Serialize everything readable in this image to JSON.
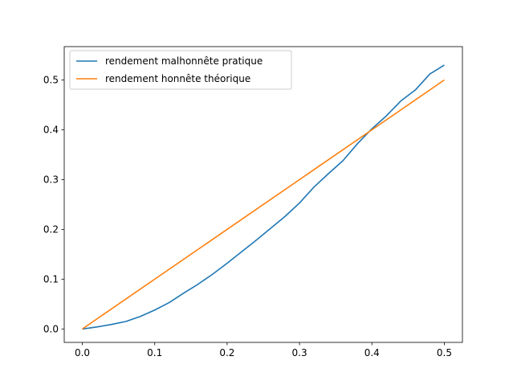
{
  "chart_data": {
    "type": "line",
    "title": "",
    "xlabel": "",
    "ylabel": "",
    "xlim": [
      -0.025,
      0.525
    ],
    "ylim": [
      -0.027,
      0.567
    ],
    "x_ticks": [
      0.0,
      0.1,
      0.2,
      0.3,
      0.4,
      0.5
    ],
    "x_tick_labels": [
      "0.0",
      "0.1",
      "0.2",
      "0.3",
      "0.4",
      "0.5"
    ],
    "y_ticks": [
      0.0,
      0.1,
      0.2,
      0.3,
      0.4,
      0.5
    ],
    "y_tick_labels": [
      "0.0",
      "0.1",
      "0.2",
      "0.3",
      "0.4",
      "0.5"
    ],
    "grid": false,
    "legend_position": "top-left",
    "series": [
      {
        "name": "rendement malhonnête pratique",
        "color": "#1f77b4",
        "x": [
          0.0,
          0.02,
          0.04,
          0.06,
          0.08,
          0.1,
          0.12,
          0.14,
          0.16,
          0.18,
          0.2,
          0.22,
          0.24,
          0.26,
          0.28,
          0.3,
          0.32,
          0.34,
          0.36,
          0.38,
          0.4,
          0.42,
          0.44,
          0.46,
          0.48,
          0.5
        ],
        "y": [
          0.0,
          0.004,
          0.009,
          0.015,
          0.025,
          0.038,
          0.053,
          0.072,
          0.09,
          0.11,
          0.132,
          0.155,
          0.178,
          0.202,
          0.226,
          0.253,
          0.285,
          0.312,
          0.338,
          0.372,
          0.402,
          0.428,
          0.458,
          0.48,
          0.512,
          0.53
        ]
      },
      {
        "name": "rendement honnête théorique",
        "color": "#ff7f0e",
        "x": [
          0.0,
          0.5
        ],
        "y": [
          0.0,
          0.5
        ]
      }
    ]
  }
}
